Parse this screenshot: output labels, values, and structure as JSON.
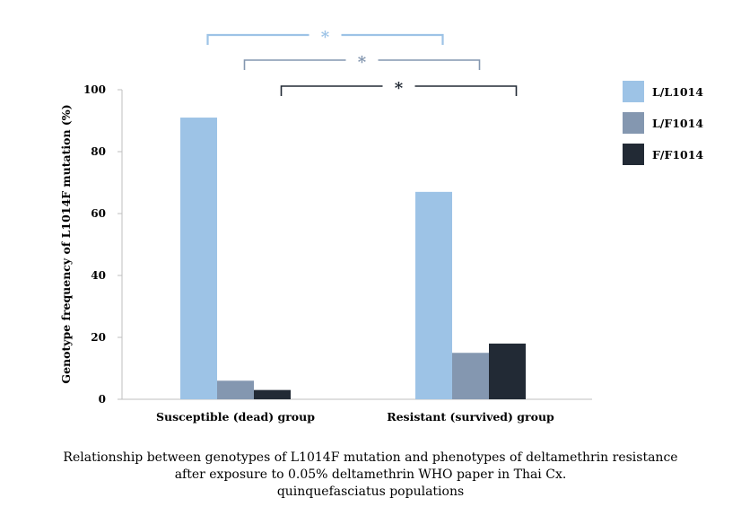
{
  "chart_data": {
    "type": "bar",
    "title": "",
    "xlabel": "",
    "ylabel": "Genotype frequency of L1014F mutation (%)",
    "ylim": [
      0,
      100
    ],
    "yticks": [
      0,
      20,
      40,
      60,
      80,
      100
    ],
    "categories": [
      "Susceptible (dead) group",
      "Resistant (survived) group"
    ],
    "series": [
      {
        "name": "L/L1014",
        "values": [
          91,
          67
        ],
        "color": "#9dc3e6"
      },
      {
        "name": "L/F1014",
        "values": [
          6,
          15
        ],
        "color": "#8497b0"
      },
      {
        "name": "F/F1014",
        "values": [
          3,
          18
        ],
        "color": "#222a35"
      }
    ],
    "legend_position": "right",
    "grid": false,
    "significance": [
      {
        "label": "*",
        "from_series": "L/L1014",
        "to_series": "L/L1014",
        "color": "#9dc3e6"
      },
      {
        "label": "*",
        "from_series": "L/F1014",
        "to_series": "L/F1014",
        "color": "#8497b0"
      },
      {
        "label": "*",
        "from_series": "F/F1014",
        "to_series": "F/F1014",
        "color": "#222a35"
      }
    ]
  },
  "caption": {
    "line1": "Relationship between genotypes of L1014F mutation and phenotypes of deltamethrin resistance",
    "line2": "after exposure to 0.05% deltamethrin WHO paper in Thai Cx.",
    "line3": "quinquefasciatus populations"
  }
}
